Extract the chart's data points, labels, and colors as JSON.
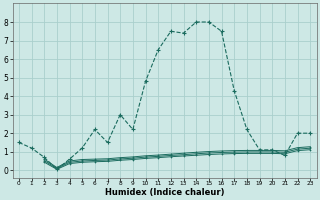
{
  "xlabel": "Humidex (Indice chaleur)",
  "background_color": "#cde8e5",
  "grid_color": "#aacfcc",
  "line_color": "#1a6b5e",
  "xlim": [
    -0.5,
    23.5
  ],
  "ylim": [
    -0.4,
    9.0
  ],
  "yticks": [
    0,
    1,
    2,
    3,
    4,
    5,
    6,
    7,
    8
  ],
  "xticks": [
    0,
    1,
    2,
    3,
    4,
    5,
    6,
    7,
    8,
    9,
    10,
    11,
    12,
    13,
    14,
    15,
    16,
    17,
    18,
    19,
    20,
    21,
    22,
    23
  ],
  "main_x": [
    0,
    1,
    2,
    3,
    4,
    5,
    6,
    7,
    8,
    9,
    10,
    11,
    12,
    13,
    14,
    15,
    16,
    17,
    18,
    19,
    20,
    21,
    22,
    23
  ],
  "main_y": [
    1.5,
    1.2,
    0.7,
    0.05,
    0.6,
    1.2,
    2.2,
    1.5,
    3.0,
    2.2,
    4.8,
    6.5,
    7.5,
    7.4,
    8.0,
    8.0,
    7.5,
    4.3,
    2.2,
    1.1,
    1.1,
    0.8,
    2.0,
    2.0
  ],
  "flat1_x": [
    2,
    3,
    4,
    5,
    6,
    7,
    8,
    9,
    10,
    11,
    12,
    13,
    14,
    15,
    16,
    17,
    18,
    19,
    20,
    21,
    22,
    23
  ],
  "flat1_y": [
    0.6,
    0.15,
    0.5,
    0.58,
    0.6,
    0.62,
    0.68,
    0.72,
    0.78,
    0.82,
    0.87,
    0.92,
    0.97,
    1.01,
    1.04,
    1.06,
    1.07,
    1.07,
    1.07,
    1.05,
    1.22,
    1.27
  ],
  "flat2_x": [
    2,
    3,
    4,
    5,
    6,
    7,
    8,
    9,
    10,
    11,
    12,
    13,
    14,
    15,
    16,
    17,
    18,
    19,
    20,
    21,
    22,
    23
  ],
  "flat2_y": [
    0.52,
    0.1,
    0.43,
    0.5,
    0.53,
    0.55,
    0.61,
    0.65,
    0.71,
    0.75,
    0.8,
    0.84,
    0.89,
    0.93,
    0.96,
    0.98,
    0.99,
    0.99,
    0.99,
    0.97,
    1.14,
    1.19
  ],
  "flat3_x": [
    2,
    3,
    4,
    5,
    6,
    7,
    8,
    9,
    10,
    11,
    12,
    13,
    14,
    15,
    16,
    17,
    18,
    19,
    20,
    21,
    22,
    23
  ],
  "flat3_y": [
    0.44,
    0.05,
    0.36,
    0.43,
    0.46,
    0.48,
    0.54,
    0.58,
    0.64,
    0.68,
    0.73,
    0.77,
    0.81,
    0.85,
    0.88,
    0.9,
    0.91,
    0.91,
    0.91,
    0.89,
    1.06,
    1.11
  ]
}
